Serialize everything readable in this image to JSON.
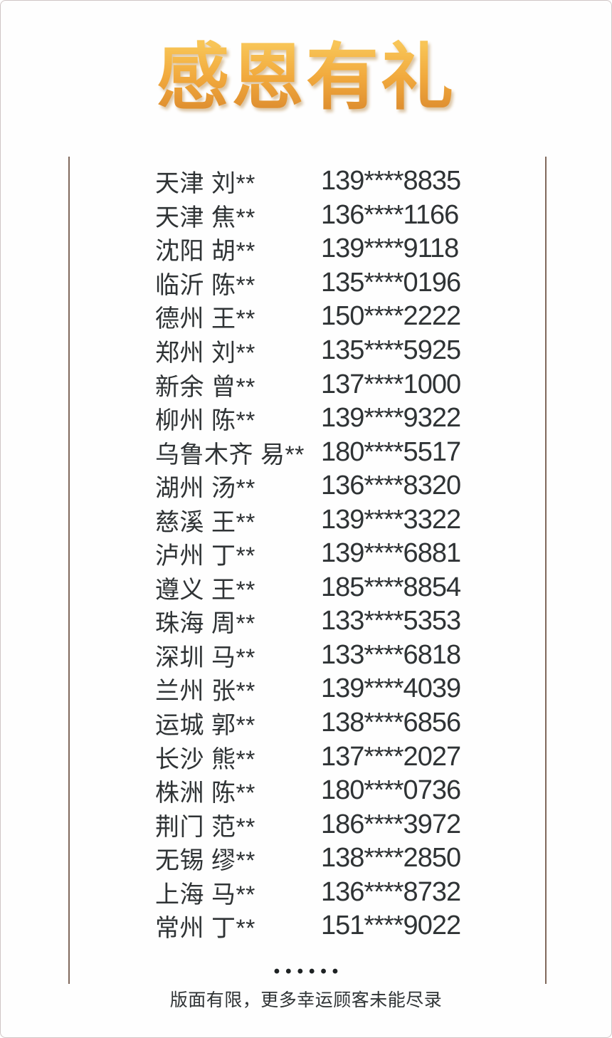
{
  "title": "感恩有礼",
  "winners": [
    {
      "name": "天津 刘**",
      "phone": "139****8835"
    },
    {
      "name": "天津 焦**",
      "phone": "136****1166"
    },
    {
      "name": "沈阳 胡**",
      "phone": "139****9118"
    },
    {
      "name": "临沂 陈**",
      "phone": "135****0196"
    },
    {
      "name": "德州 王**",
      "phone": "150****2222"
    },
    {
      "name": "郑州 刘**",
      "phone": "135****5925"
    },
    {
      "name": "新余 曾**",
      "phone": "137****1000"
    },
    {
      "name": "柳州 陈**",
      "phone": "139****9322"
    },
    {
      "name": "乌鲁木齐 易**",
      "phone": "180****5517"
    },
    {
      "name": "湖州 汤**",
      "phone": "136****8320"
    },
    {
      "name": "慈溪 王**",
      "phone": "139****3322"
    },
    {
      "name": "泸州 丁**",
      "phone": "139****6881"
    },
    {
      "name": "遵义 王**",
      "phone": "185****8854"
    },
    {
      "name": "珠海 周**",
      "phone": "133****5353"
    },
    {
      "name": "深圳 马**",
      "phone": "133****6818"
    },
    {
      "name": "兰州 张**",
      "phone": "139****4039"
    },
    {
      "name": "运城 郭**",
      "phone": "138****6856"
    },
    {
      "name": "长沙 熊**",
      "phone": "137****2027"
    },
    {
      "name": "株洲 陈**",
      "phone": "180****0736"
    },
    {
      "name": "荆门 范**",
      "phone": "186****3972"
    },
    {
      "name": "无锡 缪**",
      "phone": "138****2850"
    },
    {
      "name": "上海 马**",
      "phone": "136****8732"
    },
    {
      "name": "常州 丁**",
      "phone": "151****9022"
    }
  ],
  "footer": {
    "ellipsis": "••••••",
    "note": "版面有限，更多幸运顾客未能尽录"
  },
  "colors": {
    "gold-top": "#f8c557",
    "gold-mid": "#f1a93d",
    "gold-bottom": "#dc8b2e",
    "line-color": "#80695c",
    "text-color": "#2f3335",
    "frame-border": "#cfc5c5",
    "dot-color": "#1e2223"
  }
}
